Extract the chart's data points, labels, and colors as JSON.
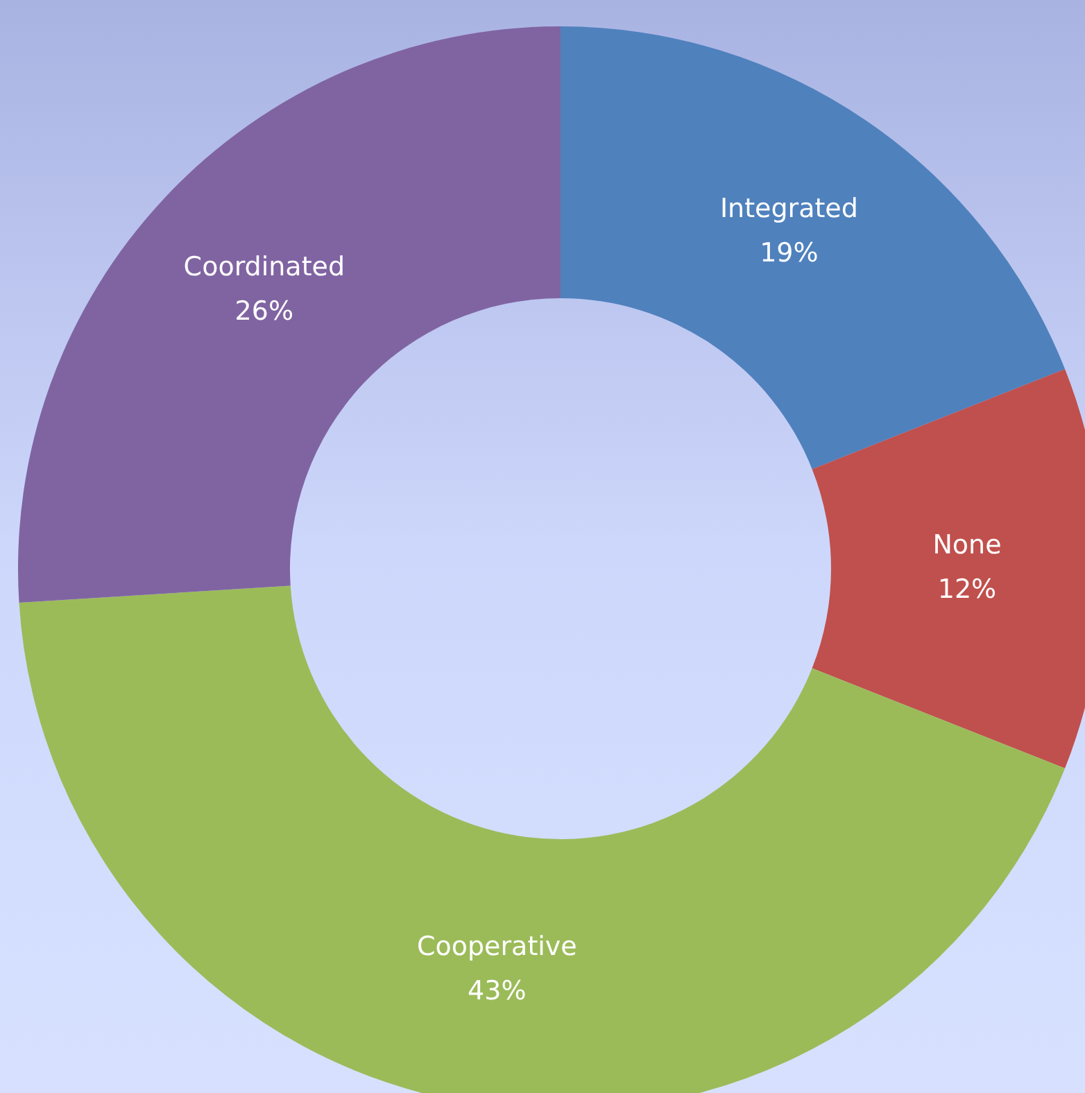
{
  "chart_data": {
    "type": "donut",
    "categories": [
      "Integrated",
      "None",
      "Cooperative",
      "Coordinated"
    ],
    "values": [
      19,
      12,
      43,
      26
    ],
    "value_labels": [
      "19%",
      "12%",
      "43%",
      "26%"
    ],
    "colors": [
      "#4f81bd",
      "#c0504d",
      "#9bbb59",
      "#8064a2"
    ],
    "legend": false
  }
}
